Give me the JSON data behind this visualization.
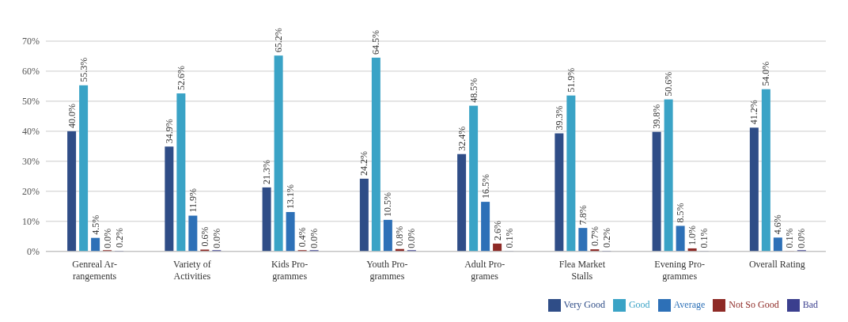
{
  "chart_data": {
    "type": "bar",
    "categories": [
      "Genreal Ar-\nrangements",
      "Variety of\nActivities",
      "Kids Pro-\ngrammes",
      "Youth Pro-\ngrammes",
      "Adult Pro-\ngrames",
      "Flea Market\nStalls",
      "Evening Pro-\ngrammes",
      "Overall Rating"
    ],
    "series": [
      {
        "name": "Very Good",
        "color": "#2f4d87",
        "values": [
          40.0,
          34.9,
          21.3,
          24.2,
          32.4,
          39.3,
          39.8,
          41.2
        ],
        "value_labels": [
          "40.0%",
          "34.9%",
          "21.3%",
          "24.2%",
          "32.4%",
          "39.3%",
          "39.8%",
          "41.2%"
        ]
      },
      {
        "name": "Good",
        "color": "#3aa3c6",
        "values": [
          55.3,
          52.6,
          65.2,
          64.5,
          48.5,
          51.9,
          50.6,
          54.0
        ],
        "value_labels": [
          "55.3%",
          "52.6%",
          "65.2%",
          "64.5%",
          "48.5%",
          "51.9%",
          "50.6%",
          "54.0%"
        ]
      },
      {
        "name": "Average",
        "color": "#2d70b7",
        "values": [
          4.5,
          11.9,
          13.1,
          10.5,
          16.5,
          7.8,
          8.5,
          4.6
        ],
        "value_labels": [
          "4.5%",
          "11.9%",
          "13.1%",
          "10.5%",
          "16.5%",
          "7.8%",
          "8.5%",
          "4.6%"
        ]
      },
      {
        "name": "Not So Good",
        "color": "#8e2a26",
        "values": [
          0.0,
          0.6,
          0.4,
          0.8,
          2.6,
          0.7,
          1.0,
          0.1
        ],
        "value_labels": [
          "0.0%",
          "0.6%",
          "0.4%",
          "0.8%",
          "2.6%",
          "0.7%",
          "1.0%",
          "0.1%"
        ]
      },
      {
        "name": "Bad",
        "color": "#3b3f8e",
        "values": [
          0.2,
          0.0,
          0.0,
          0.0,
          0.1,
          0.2,
          0.1,
          0.0
        ],
        "value_labels": [
          "0.2%",
          "0.0%",
          "0.0%",
          "0.0%",
          "0.1%",
          "0.2%",
          "0.1%",
          "0.0%"
        ]
      }
    ],
    "ylim": [
      0,
      70
    ],
    "yticks": [
      {
        "value": 0,
        "label": "0%"
      },
      {
        "value": 10,
        "label": "10%"
      },
      {
        "value": 20,
        "label": "20%"
      },
      {
        "value": 30,
        "label": "30%"
      },
      {
        "value": 40,
        "label": "40%"
      },
      {
        "value": 50,
        "label": "50%"
      },
      {
        "value": 60,
        "label": "60%"
      },
      {
        "value": 70,
        "label": "70%"
      }
    ],
    "grid": "y",
    "legend": "bottom right"
  }
}
